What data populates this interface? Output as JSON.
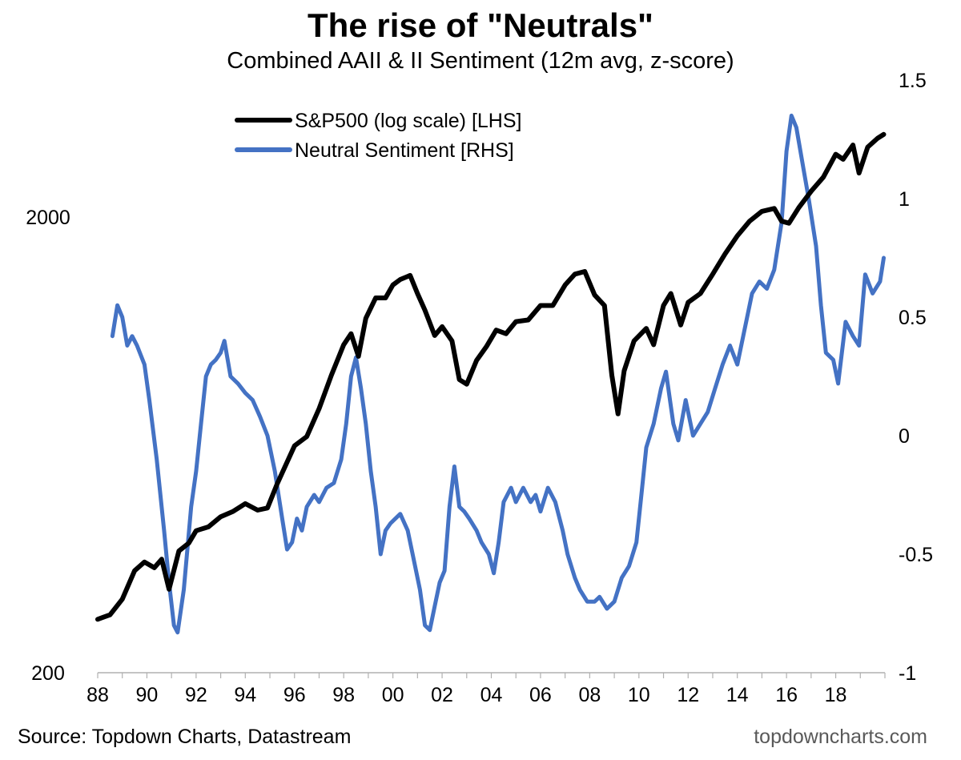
{
  "chart_data": {
    "type": "line",
    "title": "The rise of \"Neutrals\"",
    "subtitle": "Combined AAII & II Sentiment (12m avg, z-score)",
    "source": "Source: Topdown Charts, Datastream",
    "brand": "topdowncharts.com",
    "x_ticks": [
      "88",
      "90",
      "92",
      "94",
      "96",
      "98",
      "00",
      "02",
      "04",
      "06",
      "08",
      "10",
      "12",
      "14",
      "16",
      "18"
    ],
    "y_left": {
      "scale": "log",
      "ylim": [
        200,
        4000
      ],
      "ticks": [
        {
          "value": 200,
          "label": "200"
        },
        {
          "value": 2000,
          "label": "2000"
        }
      ]
    },
    "y_right": {
      "ylim": [
        -1,
        1.5
      ],
      "ticks": [
        {
          "value": 1.5,
          "label": "1.5"
        },
        {
          "value": 1,
          "label": "1"
        },
        {
          "value": 0.5,
          "label": "0.5"
        },
        {
          "value": 0,
          "label": "0"
        },
        {
          "value": -0.5,
          "label": "-0.5"
        },
        {
          "value": -1,
          "label": "-1"
        }
      ]
    },
    "x_range": [
      1988,
      2020
    ],
    "series": [
      {
        "name": "S&P500 (log scale) [LHS]",
        "axis": "left",
        "color": "#000000",
        "points": [
          [
            1988.0,
            262
          ],
          [
            1988.5,
            268
          ],
          [
            1989.0,
            290
          ],
          [
            1989.5,
            335
          ],
          [
            1989.9,
            350
          ],
          [
            1990.3,
            340
          ],
          [
            1990.6,
            355
          ],
          [
            1990.9,
            305
          ],
          [
            1991.3,
            370
          ],
          [
            1991.7,
            385
          ],
          [
            1992.0,
            410
          ],
          [
            1992.5,
            418
          ],
          [
            1993.0,
            440
          ],
          [
            1993.5,
            452
          ],
          [
            1994.0,
            470
          ],
          [
            1994.5,
            455
          ],
          [
            1994.9,
            460
          ],
          [
            1995.3,
            520
          ],
          [
            1995.7,
            580
          ],
          [
            1996.0,
            630
          ],
          [
            1996.5,
            660
          ],
          [
            1997.0,
            760
          ],
          [
            1997.5,
            900
          ],
          [
            1998.0,
            1050
          ],
          [
            1998.3,
            1110
          ],
          [
            1998.6,
            990
          ],
          [
            1998.9,
            1200
          ],
          [
            1999.3,
            1330
          ],
          [
            1999.7,
            1330
          ],
          [
            2000.0,
            1420
          ],
          [
            2000.3,
            1460
          ],
          [
            2000.7,
            1490
          ],
          [
            2001.0,
            1360
          ],
          [
            2001.3,
            1250
          ],
          [
            2001.7,
            1100
          ],
          [
            2002.0,
            1150
          ],
          [
            2002.4,
            1070
          ],
          [
            2002.7,
            880
          ],
          [
            2003.0,
            860
          ],
          [
            2003.4,
            970
          ],
          [
            2003.8,
            1040
          ],
          [
            2004.2,
            1130
          ],
          [
            2004.6,
            1110
          ],
          [
            2005.0,
            1180
          ],
          [
            2005.5,
            1190
          ],
          [
            2006.0,
            1280
          ],
          [
            2006.5,
            1280
          ],
          [
            2007.0,
            1420
          ],
          [
            2007.4,
            1500
          ],
          [
            2007.8,
            1520
          ],
          [
            2008.2,
            1350
          ],
          [
            2008.6,
            1280
          ],
          [
            2008.9,
            900
          ],
          [
            2009.15,
            740
          ],
          [
            2009.4,
            920
          ],
          [
            2009.8,
            1070
          ],
          [
            2010.3,
            1140
          ],
          [
            2010.6,
            1050
          ],
          [
            2011.0,
            1280
          ],
          [
            2011.3,
            1360
          ],
          [
            2011.7,
            1160
          ],
          [
            2012.0,
            1300
          ],
          [
            2012.5,
            1360
          ],
          [
            2013.0,
            1500
          ],
          [
            2013.5,
            1660
          ],
          [
            2014.0,
            1820
          ],
          [
            2014.5,
            1960
          ],
          [
            2015.0,
            2060
          ],
          [
            2015.5,
            2090
          ],
          [
            2015.8,
            1960
          ],
          [
            2016.1,
            1940
          ],
          [
            2016.5,
            2100
          ],
          [
            2017.0,
            2280
          ],
          [
            2017.5,
            2450
          ],
          [
            2018.0,
            2750
          ],
          [
            2018.3,
            2680
          ],
          [
            2018.7,
            2880
          ],
          [
            2018.95,
            2500
          ],
          [
            2019.3,
            2850
          ],
          [
            2019.7,
            2980
          ],
          [
            2019.95,
            3040
          ]
        ]
      },
      {
        "name": "Neutral Sentiment [RHS]",
        "axis": "right",
        "color": "#4472C4",
        "points": [
          [
            1988.6,
            0.42
          ],
          [
            1988.8,
            0.55
          ],
          [
            1989.0,
            0.5
          ],
          [
            1989.2,
            0.38
          ],
          [
            1989.4,
            0.42
          ],
          [
            1989.6,
            0.38
          ],
          [
            1989.9,
            0.3
          ],
          [
            1990.1,
            0.15
          ],
          [
            1990.4,
            -0.1
          ],
          [
            1990.7,
            -0.4
          ],
          [
            1990.9,
            -0.62
          ],
          [
            1991.1,
            -0.8
          ],
          [
            1991.25,
            -0.83
          ],
          [
            1991.5,
            -0.65
          ],
          [
            1991.8,
            -0.3
          ],
          [
            1992.0,
            -0.15
          ],
          [
            1992.2,
            0.05
          ],
          [
            1992.4,
            0.25
          ],
          [
            1992.6,
            0.3
          ],
          [
            1992.8,
            0.32
          ],
          [
            1993.0,
            0.35
          ],
          [
            1993.15,
            0.4
          ],
          [
            1993.4,
            0.25
          ],
          [
            1993.7,
            0.22
          ],
          [
            1994.0,
            0.18
          ],
          [
            1994.3,
            0.15
          ],
          [
            1994.6,
            0.08
          ],
          [
            1994.9,
            0.0
          ],
          [
            1995.2,
            -0.15
          ],
          [
            1995.5,
            -0.35
          ],
          [
            1995.7,
            -0.48
          ],
          [
            1995.9,
            -0.45
          ],
          [
            1996.1,
            -0.35
          ],
          [
            1996.3,
            -0.4
          ],
          [
            1996.5,
            -0.3
          ],
          [
            1996.8,
            -0.25
          ],
          [
            1997.0,
            -0.28
          ],
          [
            1997.3,
            -0.22
          ],
          [
            1997.6,
            -0.2
          ],
          [
            1997.9,
            -0.1
          ],
          [
            1998.1,
            0.05
          ],
          [
            1998.3,
            0.25
          ],
          [
            1998.5,
            0.33
          ],
          [
            1998.7,
            0.2
          ],
          [
            1998.9,
            0.05
          ],
          [
            1999.1,
            -0.15
          ],
          [
            1999.3,
            -0.3
          ],
          [
            1999.5,
            -0.5
          ],
          [
            1999.7,
            -0.4
          ],
          [
            1999.9,
            -0.37
          ],
          [
            2000.1,
            -0.35
          ],
          [
            2000.3,
            -0.33
          ],
          [
            2000.6,
            -0.4
          ],
          [
            2000.9,
            -0.55
          ],
          [
            2001.1,
            -0.65
          ],
          [
            2001.3,
            -0.8
          ],
          [
            2001.5,
            -0.82
          ],
          [
            2001.7,
            -0.72
          ],
          [
            2001.9,
            -0.62
          ],
          [
            2002.1,
            -0.57
          ],
          [
            2002.3,
            -0.3
          ],
          [
            2002.5,
            -0.13
          ],
          [
            2002.7,
            -0.3
          ],
          [
            2002.9,
            -0.32
          ],
          [
            2003.1,
            -0.35
          ],
          [
            2003.4,
            -0.4
          ],
          [
            2003.6,
            -0.45
          ],
          [
            2003.9,
            -0.5
          ],
          [
            2004.1,
            -0.58
          ],
          [
            2004.3,
            -0.45
          ],
          [
            2004.5,
            -0.28
          ],
          [
            2004.8,
            -0.22
          ],
          [
            2005.0,
            -0.28
          ],
          [
            2005.3,
            -0.22
          ],
          [
            2005.6,
            -0.28
          ],
          [
            2005.8,
            -0.25
          ],
          [
            2006.0,
            -0.32
          ],
          [
            2006.3,
            -0.22
          ],
          [
            2006.6,
            -0.28
          ],
          [
            2006.9,
            -0.4
          ],
          [
            2007.1,
            -0.5
          ],
          [
            2007.4,
            -0.6
          ],
          [
            2007.6,
            -0.65
          ],
          [
            2007.9,
            -0.7
          ],
          [
            2008.2,
            -0.7
          ],
          [
            2008.4,
            -0.68
          ],
          [
            2008.7,
            -0.73
          ],
          [
            2009.0,
            -0.7
          ],
          [
            2009.3,
            -0.6
          ],
          [
            2009.6,
            -0.55
          ],
          [
            2009.9,
            -0.45
          ],
          [
            2010.1,
            -0.25
          ],
          [
            2010.3,
            -0.05
          ],
          [
            2010.6,
            0.05
          ],
          [
            2010.9,
            0.2
          ],
          [
            2011.1,
            0.27
          ],
          [
            2011.4,
            0.05
          ],
          [
            2011.6,
            -0.02
          ],
          [
            2011.9,
            0.15
          ],
          [
            2012.2,
            0.0
          ],
          [
            2012.5,
            0.05
          ],
          [
            2012.8,
            0.1
          ],
          [
            2013.1,
            0.2
          ],
          [
            2013.4,
            0.3
          ],
          [
            2013.7,
            0.38
          ],
          [
            2014.0,
            0.3
          ],
          [
            2014.3,
            0.45
          ],
          [
            2014.6,
            0.6
          ],
          [
            2014.9,
            0.65
          ],
          [
            2015.2,
            0.62
          ],
          [
            2015.5,
            0.7
          ],
          [
            2015.8,
            0.9
          ],
          [
            2016.0,
            1.2
          ],
          [
            2016.2,
            1.35
          ],
          [
            2016.4,
            1.3
          ],
          [
            2016.7,
            1.12
          ],
          [
            2016.9,
            1.0
          ],
          [
            2017.2,
            0.8
          ],
          [
            2017.4,
            0.55
          ],
          [
            2017.6,
            0.35
          ],
          [
            2017.9,
            0.32
          ],
          [
            2018.1,
            0.22
          ],
          [
            2018.4,
            0.48
          ],
          [
            2018.7,
            0.42
          ],
          [
            2018.95,
            0.38
          ],
          [
            2019.2,
            0.68
          ],
          [
            2019.5,
            0.6
          ],
          [
            2019.8,
            0.65
          ],
          [
            2019.95,
            0.75
          ]
        ]
      }
    ]
  }
}
